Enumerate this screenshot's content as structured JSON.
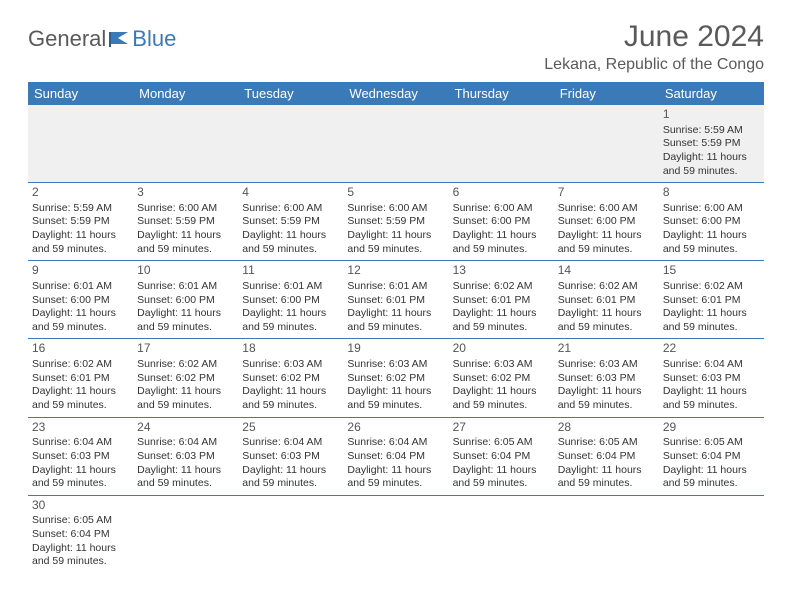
{
  "logo": {
    "text1": "General",
    "text2": "Blue"
  },
  "title": "June 2024",
  "location": "Lekana, Republic of the Congo",
  "dayHeaders": [
    "Sunday",
    "Monday",
    "Tuesday",
    "Wednesday",
    "Thursday",
    "Friday",
    "Saturday"
  ],
  "colors": {
    "headerBg": "#3a7ab8",
    "headerText": "#ffffff",
    "rowBorder": "#3a7ab8",
    "firstRowBg": "#f0f0f0",
    "logoGray": "#5a5a5a",
    "logoBlue": "#3a7ab8"
  },
  "weeks": [
    [
      null,
      null,
      null,
      null,
      null,
      null,
      {
        "d": "1",
        "sr": "5:59 AM",
        "ss": "5:59 PM",
        "dl": "11 hours and 59 minutes."
      }
    ],
    [
      {
        "d": "2",
        "sr": "5:59 AM",
        "ss": "5:59 PM",
        "dl": "11 hours and 59 minutes."
      },
      {
        "d": "3",
        "sr": "6:00 AM",
        "ss": "5:59 PM",
        "dl": "11 hours and 59 minutes."
      },
      {
        "d": "4",
        "sr": "6:00 AM",
        "ss": "5:59 PM",
        "dl": "11 hours and 59 minutes."
      },
      {
        "d": "5",
        "sr": "6:00 AM",
        "ss": "5:59 PM",
        "dl": "11 hours and 59 minutes."
      },
      {
        "d": "6",
        "sr": "6:00 AM",
        "ss": "6:00 PM",
        "dl": "11 hours and 59 minutes."
      },
      {
        "d": "7",
        "sr": "6:00 AM",
        "ss": "6:00 PM",
        "dl": "11 hours and 59 minutes."
      },
      {
        "d": "8",
        "sr": "6:00 AM",
        "ss": "6:00 PM",
        "dl": "11 hours and 59 minutes."
      }
    ],
    [
      {
        "d": "9",
        "sr": "6:01 AM",
        "ss": "6:00 PM",
        "dl": "11 hours and 59 minutes."
      },
      {
        "d": "10",
        "sr": "6:01 AM",
        "ss": "6:00 PM",
        "dl": "11 hours and 59 minutes."
      },
      {
        "d": "11",
        "sr": "6:01 AM",
        "ss": "6:00 PM",
        "dl": "11 hours and 59 minutes."
      },
      {
        "d": "12",
        "sr": "6:01 AM",
        "ss": "6:01 PM",
        "dl": "11 hours and 59 minutes."
      },
      {
        "d": "13",
        "sr": "6:02 AM",
        "ss": "6:01 PM",
        "dl": "11 hours and 59 minutes."
      },
      {
        "d": "14",
        "sr": "6:02 AM",
        "ss": "6:01 PM",
        "dl": "11 hours and 59 minutes."
      },
      {
        "d": "15",
        "sr": "6:02 AM",
        "ss": "6:01 PM",
        "dl": "11 hours and 59 minutes."
      }
    ],
    [
      {
        "d": "16",
        "sr": "6:02 AM",
        "ss": "6:01 PM",
        "dl": "11 hours and 59 minutes."
      },
      {
        "d": "17",
        "sr": "6:02 AM",
        "ss": "6:02 PM",
        "dl": "11 hours and 59 minutes."
      },
      {
        "d": "18",
        "sr": "6:03 AM",
        "ss": "6:02 PM",
        "dl": "11 hours and 59 minutes."
      },
      {
        "d": "19",
        "sr": "6:03 AM",
        "ss": "6:02 PM",
        "dl": "11 hours and 59 minutes."
      },
      {
        "d": "20",
        "sr": "6:03 AM",
        "ss": "6:02 PM",
        "dl": "11 hours and 59 minutes."
      },
      {
        "d": "21",
        "sr": "6:03 AM",
        "ss": "6:03 PM",
        "dl": "11 hours and 59 minutes."
      },
      {
        "d": "22",
        "sr": "6:04 AM",
        "ss": "6:03 PM",
        "dl": "11 hours and 59 minutes."
      }
    ],
    [
      {
        "d": "23",
        "sr": "6:04 AM",
        "ss": "6:03 PM",
        "dl": "11 hours and 59 minutes."
      },
      {
        "d": "24",
        "sr": "6:04 AM",
        "ss": "6:03 PM",
        "dl": "11 hours and 59 minutes."
      },
      {
        "d": "25",
        "sr": "6:04 AM",
        "ss": "6:03 PM",
        "dl": "11 hours and 59 minutes."
      },
      {
        "d": "26",
        "sr": "6:04 AM",
        "ss": "6:04 PM",
        "dl": "11 hours and 59 minutes."
      },
      {
        "d": "27",
        "sr": "6:05 AM",
        "ss": "6:04 PM",
        "dl": "11 hours and 59 minutes."
      },
      {
        "d": "28",
        "sr": "6:05 AM",
        "ss": "6:04 PM",
        "dl": "11 hours and 59 minutes."
      },
      {
        "d": "29",
        "sr": "6:05 AM",
        "ss": "6:04 PM",
        "dl": "11 hours and 59 minutes."
      }
    ],
    [
      {
        "d": "30",
        "sr": "6:05 AM",
        "ss": "6:04 PM",
        "dl": "11 hours and 59 minutes."
      },
      null,
      null,
      null,
      null,
      null,
      null
    ]
  ],
  "labels": {
    "sunrise": "Sunrise: ",
    "sunset": "Sunset: ",
    "daylight": "Daylight: "
  }
}
